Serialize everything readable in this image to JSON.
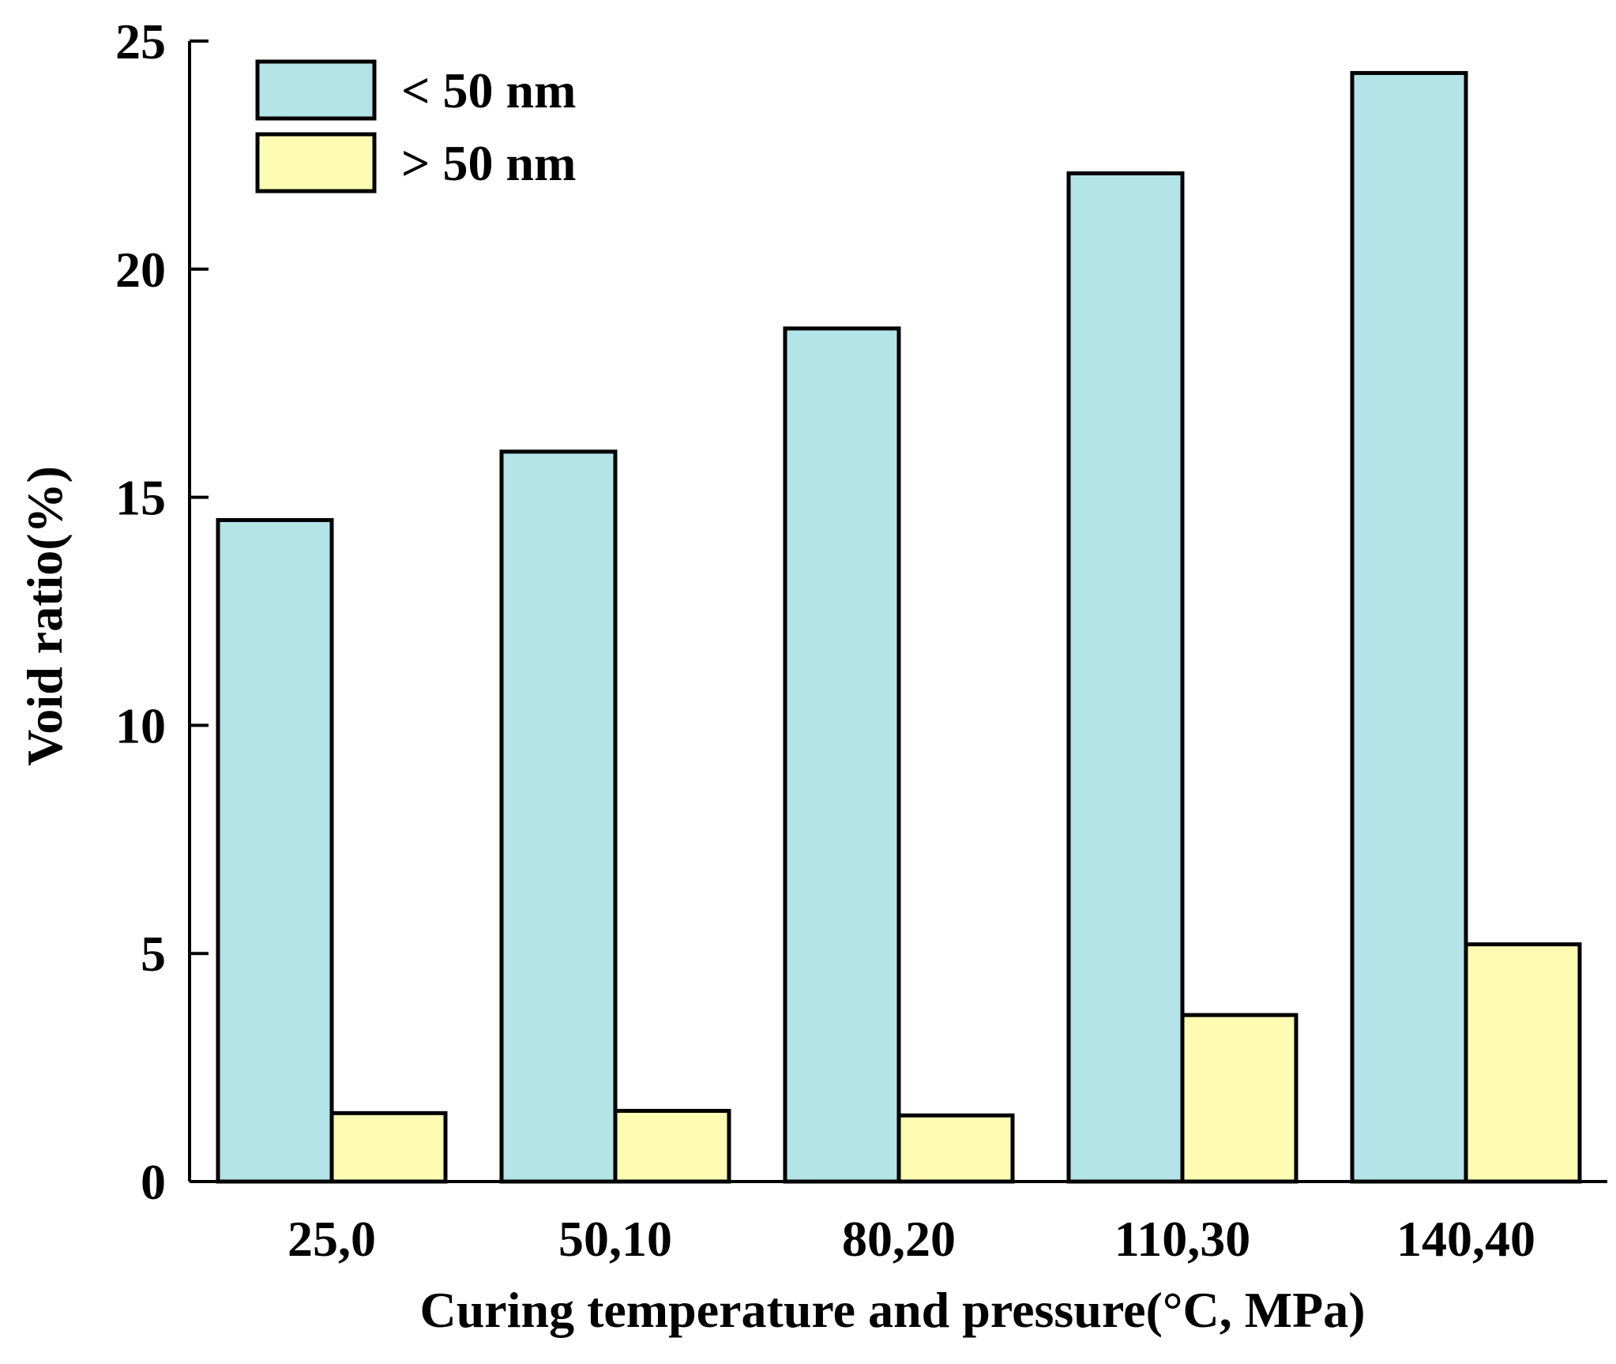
{
  "chart_data": {
    "type": "bar",
    "categories": [
      "25,0",
      "50,10",
      "80,20",
      "110,30",
      "140,40"
    ],
    "series": [
      {
        "name": "< 50 nm",
        "values": [
          14.5,
          16.0,
          18.7,
          22.1,
          24.3
        ],
        "color": "#b2e4e8"
      },
      {
        "name": "> 50 nm",
        "values": [
          1.5,
          1.55,
          1.45,
          3.65,
          5.2
        ],
        "color": "#fefbb2"
      }
    ],
    "title": "",
    "xlabel": "Curing temperature and pressure(°C, MPa)",
    "ylabel": "Void ratio(%)",
    "ylim": [
      0,
      25
    ],
    "yticks": [
      0,
      5,
      10,
      15,
      20,
      25
    ],
    "legend_position": "top-left",
    "grid": false
  }
}
